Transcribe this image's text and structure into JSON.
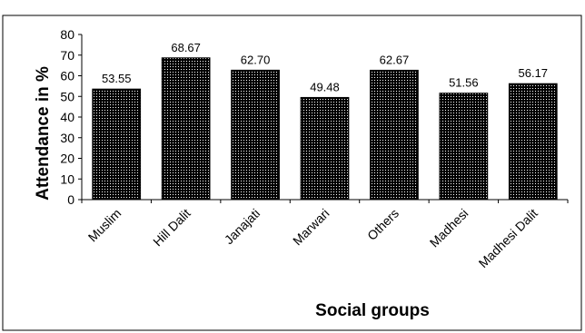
{
  "chart_data": {
    "type": "bar",
    "categories": [
      "Muslim",
      "Hill Dalit",
      "Janajati",
      "Marwari",
      "Others",
      "Madhesi",
      "Madhesi Dalit"
    ],
    "values": [
      53.55,
      68.67,
      62.7,
      49.48,
      62.67,
      51.56,
      56.17
    ],
    "value_labels": [
      "53.55",
      "68.67",
      "62.70",
      "49.48",
      "62.67",
      "51.56",
      "56.17"
    ],
    "xlabel": "Social groups",
    "ylabel": "Attendance in %",
    "ylim": [
      0,
      80
    ],
    "yticks": [
      "0",
      "10",
      "20",
      "30",
      "40",
      "50",
      "60",
      "70",
      "80"
    ],
    "grid": false,
    "legend": "none",
    "bar_fill": "dotted-black",
    "colors": {
      "bar": "#000000",
      "dot": "#ffffff",
      "frame": "#000000"
    }
  }
}
